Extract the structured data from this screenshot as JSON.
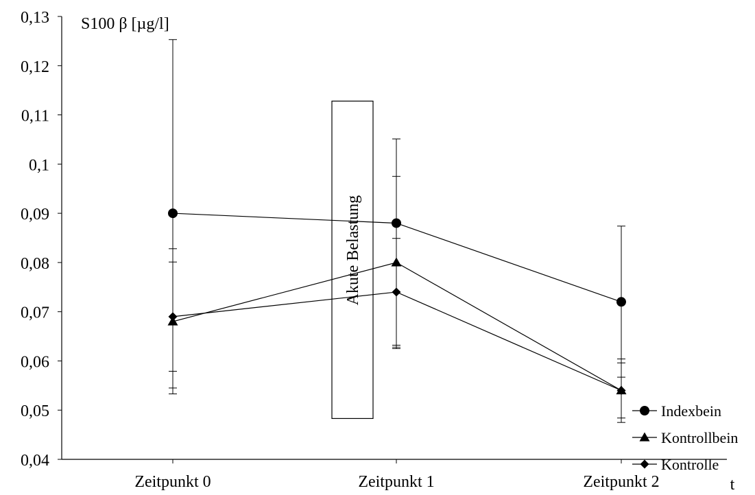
{
  "chart_data": {
    "type": "line",
    "ylabel": "S100 β [µg/l]",
    "xlabel": "t",
    "ylim": [
      0.04,
      0.13
    ],
    "y_ticks": [
      0.04,
      0.05,
      0.06,
      0.07,
      0.08,
      0.09,
      0.1,
      0.11,
      0.12,
      0.13
    ],
    "y_tick_labels": [
      "0,04",
      "0,05",
      "0,06",
      "0,07",
      "0,08",
      "0,09",
      "0,1",
      "0,11",
      "0,12",
      "0,13"
    ],
    "categories": [
      "Zeitpunkt 0",
      "Zeitpunkt 1",
      "Zeitpunkt 2"
    ],
    "grid": false,
    "legend_position": "bottom-right",
    "annotation": {
      "text": "Akute Belastung",
      "y_range": [
        0.0483,
        0.1128
      ]
    },
    "series": [
      {
        "name": "Indexbein",
        "marker": "circle",
        "values": [
          0.09,
          0.088,
          0.072
        ],
        "error_low": [
          0.0545,
          0.0628,
          0.0567
        ],
        "error_high": [
          0.1253,
          0.0975,
          0.0874
        ]
      },
      {
        "name": "Kontrollbein",
        "marker": "triangle",
        "values": [
          0.068,
          0.08,
          0.054
        ],
        "error_low": [
          0.0533,
          0.0632,
          0.0475
        ],
        "error_high": [
          0.0828,
          0.1051,
          0.0604
        ]
      },
      {
        "name": "Kontrolle",
        "marker": "diamond",
        "values": [
          0.069,
          0.074,
          0.054
        ],
        "error_low": [
          0.0579,
          0.0625,
          0.0484
        ],
        "error_high": [
          0.0801,
          0.0849,
          0.0596
        ]
      }
    ]
  }
}
